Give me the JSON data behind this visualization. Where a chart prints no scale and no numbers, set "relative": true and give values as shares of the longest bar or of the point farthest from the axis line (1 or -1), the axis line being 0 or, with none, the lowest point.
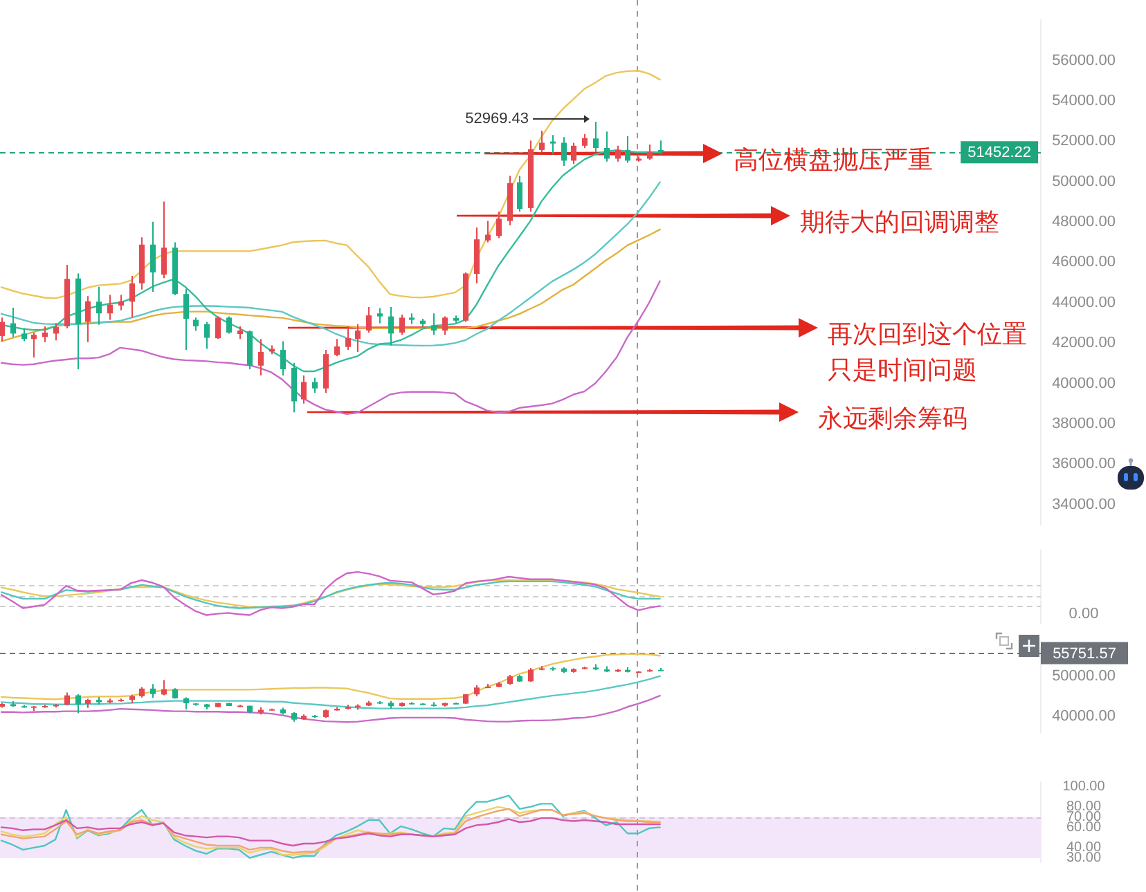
{
  "chart_data": [
    {
      "type": "candlestick",
      "categories": [
        null,
        null,
        null,
        null,
        null,
        null,
        null,
        null,
        null,
        null,
        null,
        null,
        null,
        null,
        null,
        null,
        null,
        null,
        null,
        null,
        null,
        null,
        null,
        null,
        null,
        null,
        null,
        null,
        null,
        null,
        null,
        null,
        null,
        null,
        null,
        null,
        null,
        null,
        null,
        null,
        null,
        null,
        null,
        null,
        null,
        null,
        null,
        null,
        null,
        null,
        null,
        null,
        null,
        null,
        null,
        null,
        null,
        null,
        null,
        null,
        null,
        null
      ],
      "ohlc": [
        [
          42350,
          43260,
          42090,
          43050
        ],
        [
          42980,
          43750,
          42300,
          42470
        ],
        [
          42470,
          42730,
          42090,
          42200
        ],
        [
          42200,
          42520,
          41280,
          42410
        ],
        [
          42300,
          42830,
          42050,
          42520
        ],
        [
          42470,
          42980,
          42130,
          42790
        ],
        [
          42830,
          45880,
          42730,
          45180
        ],
        [
          45200,
          45450,
          40700,
          42940
        ],
        [
          43050,
          44330,
          42050,
          44070
        ],
        [
          44050,
          44790,
          42900,
          43470
        ],
        [
          43470,
          44390,
          43150,
          43900
        ],
        [
          43860,
          44390,
          43620,
          44070
        ],
        [
          44050,
          45330,
          43260,
          44960
        ],
        [
          44960,
          47240,
          44650,
          46880
        ],
        [
          46880,
          48010,
          44540,
          45500
        ],
        [
          45390,
          49010,
          45220,
          46730
        ],
        [
          46730,
          46990,
          44370,
          44430
        ],
        [
          44430,
          44690,
          41660,
          43200
        ],
        [
          43150,
          43260,
          42600,
          42830
        ],
        [
          42940,
          43050,
          41710,
          42260
        ],
        [
          42240,
          43320,
          42200,
          43260
        ],
        [
          43260,
          43320,
          42470,
          42520
        ],
        [
          42450,
          42830,
          42200,
          42620
        ],
        [
          42580,
          42620,
          40700,
          40880
        ],
        [
          40880,
          42200,
          40390,
          41560
        ],
        [
          41580,
          41880,
          41450,
          41710
        ],
        [
          41660,
          42090,
          40390,
          40700
        ],
        [
          40770,
          41020,
          38570,
          39110
        ],
        [
          39210,
          40390,
          39000,
          40070
        ],
        [
          40070,
          40280,
          39530,
          39750
        ],
        [
          39750,
          41660,
          39530,
          41450
        ],
        [
          41410,
          42200,
          41340,
          41830
        ],
        [
          41810,
          42830,
          41660,
          42240
        ],
        [
          42200,
          42940,
          41560,
          42620
        ],
        [
          42620,
          43790,
          42520,
          43370
        ],
        [
          43470,
          43730,
          42980,
          43320
        ],
        [
          43320,
          43790,
          41880,
          42470
        ],
        [
          42520,
          43410,
          42410,
          43260
        ],
        [
          43260,
          43470,
          42940,
          43150
        ],
        [
          43110,
          43200,
          42830,
          42940
        ],
        [
          42880,
          43470,
          42410,
          42620
        ],
        [
          42620,
          43320,
          42410,
          43260
        ],
        [
          43240,
          43370,
          43010,
          43110
        ],
        [
          43110,
          45500,
          43050,
          45450
        ],
        [
          45430,
          47730,
          44960,
          47140
        ],
        [
          47090,
          48050,
          46990,
          47370
        ],
        [
          47310,
          48520,
          47200,
          48160
        ],
        [
          48050,
          50290,
          47840,
          49930
        ],
        [
          49970,
          50290,
          48520,
          48650
        ],
        [
          48690,
          52040,
          48520,
          51610
        ],
        [
          51570,
          52530,
          51460,
          51930
        ],
        [
          51990,
          52310,
          51350,
          51890
        ],
        [
          51930,
          52210,
          50780,
          51040
        ],
        [
          51040,
          51930,
          50870,
          51780
        ],
        [
          51780,
          52360,
          51670,
          52160
        ],
        [
          52140,
          52969.43,
          51460,
          51670
        ],
        [
          51670,
          52480,
          50990,
          51140
        ],
        [
          51140,
          51780,
          50990,
          51570
        ],
        [
          51570,
          52250,
          50930,
          51040
        ],
        [
          51040,
          51250,
          50990,
          51140
        ],
        [
          51140,
          51840,
          51080,
          51500
        ],
        [
          51570,
          52040,
          51350,
          51452.22
        ]
      ],
      "colors": [
        "#e5494f",
        "#1db088",
        "#1db088",
        "#e5494f",
        "#e5494f",
        "#e5494f",
        "#e5494f",
        "#1db088",
        "#e5494f",
        "#1db088",
        "#e5494f",
        "#e5494f",
        "#e5494f",
        "#e5494f",
        "#1db088",
        "#e5494f",
        "#1db088",
        "#1db088",
        "#1db088",
        "#1db088",
        "#e5494f",
        "#1db088",
        "#e5494f",
        "#1db088",
        "#e5494f",
        "#e5494f",
        "#1db088",
        "#1db088",
        "#e5494f",
        "#1db088",
        "#e5494f",
        "#e5494f",
        "#e5494f",
        "#e5494f",
        "#e5494f",
        "#1db088",
        "#1db088",
        "#e5494f",
        "#1db088",
        "#1db088",
        "#1db088",
        "#e5494f",
        "#1db088",
        "#e5494f",
        "#e5494f",
        "#e5494f",
        "#e5494f",
        "#e5494f",
        "#1db088",
        "#e5494f",
        "#e5494f",
        "#1db088",
        "#1db088",
        "#e5494f",
        "#e5494f",
        "#1db088",
        "#1db088",
        "#e5494f",
        "#1db088",
        "#e5494f",
        "#e5494f",
        "#1db088"
      ],
      "series": [
        {
          "type": "line",
          "color": "#ecc65a",
          "values": [
            44770,
            44600,
            44450,
            44350,
            44250,
            44220,
            44350,
            44550,
            44750,
            44860,
            44900,
            44940,
            45100,
            45600,
            46110,
            46400,
            46560,
            46560,
            46560,
            46560,
            46560,
            46560,
            46560,
            46560,
            46650,
            46750,
            46850,
            47000,
            47040,
            47070,
            47080,
            46950,
            46850,
            46300,
            45780,
            45050,
            44420,
            44330,
            44270,
            44260,
            44300,
            44400,
            44500,
            44860,
            46200,
            47250,
            48200,
            49400,
            50600,
            51300,
            52200,
            53000,
            53600,
            54100,
            54600,
            54900,
            55250,
            55400,
            55480,
            55500,
            55350,
            55060
          ]
        },
        {
          "type": "line",
          "color": "#36bc9c",
          "values": [
            42900,
            42800,
            42700,
            42650,
            42650,
            42830,
            43300,
            43500,
            43700,
            43850,
            43950,
            44000,
            44200,
            44500,
            44800,
            45000,
            45170,
            44800,
            44300,
            43700,
            43300,
            43000,
            42750,
            42450,
            42000,
            41600,
            41300,
            40900,
            40600,
            40600,
            40800,
            41020,
            41200,
            41350,
            41700,
            41950,
            42000,
            42150,
            42400,
            42700,
            42850,
            42900,
            42950,
            43160,
            43900,
            44860,
            45800,
            46560,
            47300,
            48050,
            49000,
            49700,
            50300,
            50710,
            51100,
            51350,
            51500,
            51560,
            51500,
            51460,
            51450,
            51460
          ]
        },
        {
          "type": "line",
          "color": "#5cc8c4",
          "values": [
            43450,
            43300,
            43150,
            43000,
            42950,
            42940,
            42940,
            42940,
            42960,
            43000,
            43050,
            43100,
            43250,
            43400,
            43580,
            43700,
            43790,
            43820,
            43840,
            43840,
            43830,
            43800,
            43780,
            43750,
            43680,
            43620,
            43550,
            43300,
            43100,
            42900,
            42700,
            42450,
            42250,
            42100,
            41980,
            41930,
            41920,
            41900,
            41880,
            41870,
            41880,
            41920,
            42000,
            42150,
            42450,
            42700,
            43100,
            43450,
            43850,
            44250,
            44650,
            45050,
            45350,
            45650,
            46000,
            46400,
            46900,
            47400,
            47900,
            48500,
            49200,
            49970
          ]
        },
        {
          "type": "line",
          "color": "#e3b23c",
          "values": [
            42090,
            42250,
            42400,
            42550,
            42700,
            42830,
            42900,
            42950,
            43000,
            43030,
            43050,
            43050,
            43050,
            43200,
            43350,
            43450,
            43500,
            43550,
            43560,
            43560,
            43500,
            43450,
            43420,
            43370,
            43330,
            43280,
            43250,
            43150,
            43050,
            42950,
            42900,
            42850,
            42830,
            42780,
            42730,
            42730,
            42730,
            42730,
            42730,
            42730,
            42730,
            42730,
            42730,
            42730,
            42800,
            42950,
            43100,
            43250,
            43450,
            43700,
            43950,
            44300,
            44650,
            44900,
            45300,
            45700,
            46100,
            46450,
            46850,
            47100,
            47350,
            47630
          ]
        },
        {
          "type": "line",
          "color": "#c96ac8",
          "values": [
            41020,
            40950,
            40920,
            40950,
            41050,
            41130,
            41180,
            41240,
            41240,
            41280,
            41450,
            41770,
            41700,
            41620,
            41450,
            41300,
            41200,
            41150,
            41130,
            41100,
            41050,
            41020,
            40950,
            40900,
            40750,
            40550,
            40200,
            39700,
            39250,
            38950,
            38700,
            38600,
            38480,
            38550,
            38850,
            39150,
            39450,
            39550,
            39580,
            39580,
            39580,
            39550,
            39500,
            39100,
            38900,
            38650,
            38570,
            38600,
            38790,
            38850,
            38920,
            39000,
            39200,
            39450,
            39600,
            40000,
            40600,
            41300,
            42300,
            43100,
            44000,
            45070
          ]
        }
      ],
      "ylim": [
        33000,
        58000
      ],
      "yticks": [
        {
          "value": 34000,
          "label": "34000.00"
        },
        {
          "value": 36000,
          "label": "36000.00"
        },
        {
          "value": 38000,
          "label": "38000.00"
        },
        {
          "value": 40000,
          "label": "40000.00"
        },
        {
          "value": 42000,
          "label": "42000.00"
        },
        {
          "value": 44000,
          "label": "44000.00"
        },
        {
          "value": 46000,
          "label": "46000.00"
        },
        {
          "value": 48000,
          "label": "48000.00"
        },
        {
          "value": 50000,
          "label": "50000.00"
        },
        {
          "value": 52000,
          "label": "52000.00"
        },
        {
          "value": 54000,
          "label": "54000.00"
        },
        {
          "value": 56000,
          "label": "56000.00"
        }
      ],
      "ref_lines": [
        {
          "axis": "y",
          "value": 51452.22,
          "label": "51452.22",
          "color": "#1fa57c",
          "line_style": "dashed"
        }
      ],
      "annotations": [
        "52969.43",
        "高位横盘抛压严重",
        "期待大的回调调整",
        "再次回到这个位置",
        "只是时间问题",
        "永远剩余筹码"
      ]
    },
    {
      "type": "line",
      "relative": true,
      "categories": [
        null,
        null,
        null,
        null,
        null,
        null,
        null,
        null,
        null,
        null,
        null,
        null,
        null,
        null,
        null,
        null,
        null,
        null,
        null,
        null,
        null,
        null,
        null,
        null,
        null,
        null,
        null,
        null,
        null,
        null,
        null,
        null,
        null,
        null,
        null,
        null,
        null,
        null,
        null,
        null,
        null,
        null,
        null,
        null,
        null,
        null,
        null,
        null,
        null,
        null,
        null,
        null,
        null,
        null,
        null,
        null,
        null,
        null,
        null,
        null,
        null,
        null
      ],
      "series": [
        {
          "color": "#d064c8",
          "values": [
            0.47,
            0.32,
            0.16,
            0.2,
            0.24,
            0.45,
            0.68,
            0.57,
            0.56,
            0.57,
            0.58,
            0.59,
            0.74,
            0.81,
            0.75,
            0.66,
            0.41,
            0.24,
            0.09,
            0,
            0.03,
            0.05,
            0.02,
            0,
            0.12,
            0.18,
            0.16,
            0.19,
            0.25,
            0.25,
            0.6,
            0.82,
            0.97,
            1,
            0.96,
            0.9,
            0.8,
            0.78,
            0.76,
            0.62,
            0.48,
            0.51,
            0.56,
            0.74,
            0.78,
            0.8,
            0.84,
            0.89,
            0.86,
            0.83,
            0.83,
            0.83,
            0.8,
            0.77,
            0.74,
            0.71,
            0.62,
            0.42,
            0.22,
            0.11,
            0.17,
            0.21
          ]
        },
        {
          "color": "#52c6be",
          "values": [
            0.53,
            0.45,
            0.38,
            0.38,
            0.38,
            0.48,
            0.58,
            0.56,
            0.54,
            0.56,
            0.58,
            0.59,
            0.65,
            0.7,
            0.67,
            0.64,
            0.54,
            0.43,
            0.35,
            0.28,
            0.22,
            0.18,
            0.16,
            0.17,
            0.18,
            0.19,
            0.2,
            0.22,
            0.26,
            0.32,
            0.42,
            0.53,
            0.6,
            0.66,
            0.7,
            0.73,
            0.75,
            0.73,
            0.7,
            0.64,
            0.6,
            0.59,
            0.59,
            0.64,
            0.7,
            0.73,
            0.77,
            0.78,
            0.78,
            0.78,
            0.78,
            0.78,
            0.76,
            0.73,
            0.7,
            0.66,
            0.58,
            0.5,
            0.42,
            0.38,
            0.38,
            0.38
          ]
        },
        {
          "color": "#e9c85c",
          "values": [
            0.64,
            0.59,
            0.53,
            0.48,
            0.44,
            0.44,
            0.46,
            0.48,
            0.5,
            0.53,
            0.57,
            0.61,
            0.64,
            0.65,
            0.65,
            0.65,
            0.56,
            0.47,
            0.4,
            0.34,
            0.29,
            0.26,
            0.22,
            0.19,
            0.19,
            0.2,
            0.21,
            0.22,
            0.28,
            0.35,
            0.42,
            0.51,
            0.59,
            0.64,
            0.68,
            0.72,
            0.71,
            0.69,
            0.67,
            0.65,
            0.65,
            0.65,
            0.67,
            0.72,
            0.77,
            0.81,
            0.81,
            0.81,
            0.81,
            0.81,
            0.81,
            0.81,
            0.8,
            0.78,
            0.76,
            0.72,
            0.67,
            0.6,
            0.56,
            0.52,
            0.47,
            0.43
          ]
        }
      ],
      "ref_lines": [
        {
          "axis": "y",
          "value": 0.7,
          "color": "#cfcfcf",
          "line_style": "dashed"
        },
        {
          "axis": "y",
          "value": 0.43,
          "color": "#cfcfcf",
          "line_style": "dashed"
        },
        {
          "axis": "y",
          "value": 0.22,
          "color": "#cfcfcf",
          "line_style": "dashed"
        }
      ],
      "annotations": [
        "0.00"
      ]
    },
    {
      "type": "candlestick",
      "categories": [
        null,
        null,
        null,
        null,
        null,
        null,
        null,
        null,
        null,
        null,
        null,
        null,
        null,
        null,
        null,
        null,
        null,
        null,
        null,
        null,
        null,
        null,
        null,
        null,
        null,
        null,
        null,
        null,
        null,
        null,
        null,
        null,
        null,
        null,
        null,
        null,
        null,
        null,
        null,
        null,
        null,
        null,
        null,
        null,
        null,
        null,
        null,
        null,
        null,
        null,
        null,
        null,
        null,
        null,
        null,
        null,
        null,
        null,
        null,
        null,
        null,
        null
      ],
      "ohlc": [
        [
          42350,
          43260,
          42090,
          43050
        ],
        [
          42980,
          43750,
          42300,
          42470
        ],
        [
          42470,
          42730,
          42090,
          42200
        ],
        [
          42200,
          42520,
          41280,
          42410
        ],
        [
          42300,
          42830,
          42050,
          42520
        ],
        [
          42470,
          42980,
          42130,
          42790
        ],
        [
          42830,
          45880,
          42730,
          45180
        ],
        [
          45200,
          45450,
          40700,
          42940
        ],
        [
          43050,
          44330,
          42050,
          44070
        ],
        [
          44050,
          44790,
          42900,
          43470
        ],
        [
          43470,
          44390,
          43150,
          43900
        ],
        [
          43860,
          44390,
          43620,
          44070
        ],
        [
          44050,
          45330,
          43260,
          44960
        ],
        [
          44960,
          47240,
          44650,
          46880
        ],
        [
          46880,
          48010,
          44540,
          45500
        ],
        [
          45390,
          49010,
          45220,
          46730
        ],
        [
          46730,
          46990,
          44370,
          44430
        ],
        [
          44430,
          44690,
          41660,
          43200
        ],
        [
          43150,
          43260,
          42600,
          42830
        ],
        [
          42940,
          43050,
          41710,
          42260
        ],
        [
          42240,
          43320,
          42200,
          43260
        ],
        [
          43260,
          43320,
          42470,
          42520
        ],
        [
          42450,
          42830,
          42200,
          42620
        ],
        [
          42580,
          42620,
          40700,
          40880
        ],
        [
          40880,
          42200,
          40390,
          41560
        ],
        [
          41580,
          41880,
          41450,
          41710
        ],
        [
          41660,
          42090,
          40390,
          40700
        ],
        [
          40770,
          41020,
          38570,
          39110
        ],
        [
          39210,
          40390,
          39000,
          40070
        ],
        [
          40070,
          40280,
          39530,
          39750
        ],
        [
          39750,
          41660,
          39530,
          41450
        ],
        [
          41410,
          42200,
          41340,
          41830
        ],
        [
          41810,
          42830,
          41660,
          42240
        ],
        [
          42200,
          42940,
          41560,
          42620
        ],
        [
          42620,
          43790,
          42520,
          43370
        ],
        [
          43470,
          43730,
          42980,
          43320
        ],
        [
          43320,
          43790,
          41880,
          42470
        ],
        [
          42520,
          43410,
          42410,
          43260
        ],
        [
          43260,
          43470,
          42940,
          43150
        ],
        [
          43110,
          43200,
          42830,
          42940
        ],
        [
          42880,
          43470,
          42410,
          42620
        ],
        [
          42620,
          43320,
          42410,
          43260
        ],
        [
          43240,
          43370,
          43010,
          43110
        ],
        [
          43110,
          45500,
          43050,
          45450
        ],
        [
          45430,
          47730,
          44960,
          47140
        ],
        [
          47090,
          48050,
          46990,
          47370
        ],
        [
          47310,
          48520,
          47200,
          48160
        ],
        [
          48050,
          50290,
          47840,
          49930
        ],
        [
          49970,
          50290,
          48520,
          48650
        ],
        [
          48690,
          52040,
          48520,
          51610
        ],
        [
          51570,
          52530,
          51460,
          51930
        ],
        [
          51990,
          52310,
          51350,
          51890
        ],
        [
          51930,
          52210,
          50780,
          51040
        ],
        [
          51040,
          51930,
          50870,
          51780
        ],
        [
          51780,
          52360,
          51670,
          52160
        ],
        [
          52140,
          52969.43,
          51460,
          51670
        ],
        [
          51670,
          52480,
          50990,
          51140
        ],
        [
          51140,
          51780,
          50990,
          51570
        ],
        [
          51570,
          52250,
          50930,
          51040
        ],
        [
          51040,
          51250,
          50990,
          51140
        ],
        [
          51140,
          51840,
          51080,
          51500
        ],
        [
          51570,
          52040,
          51350,
          51452.22
        ]
      ],
      "colors": [
        "#e5494f",
        "#1db088",
        "#1db088",
        "#e5494f",
        "#e5494f",
        "#e5494f",
        "#e5494f",
        "#1db088",
        "#e5494f",
        "#1db088",
        "#e5494f",
        "#e5494f",
        "#e5494f",
        "#e5494f",
        "#1db088",
        "#e5494f",
        "#1db088",
        "#1db088",
        "#1db088",
        "#1db088",
        "#e5494f",
        "#1db088",
        "#e5494f",
        "#1db088",
        "#e5494f",
        "#e5494f",
        "#1db088",
        "#1db088",
        "#e5494f",
        "#1db088",
        "#e5494f",
        "#e5494f",
        "#e5494f",
        "#e5494f",
        "#e5494f",
        "#1db088",
        "#1db088",
        "#e5494f",
        "#1db088",
        "#1db088",
        "#1db088",
        "#e5494f",
        "#1db088",
        "#e5494f",
        "#e5494f",
        "#e5494f",
        "#e5494f",
        "#e5494f",
        "#1db088",
        "#e5494f",
        "#e5494f",
        "#1db088",
        "#1db088",
        "#e5494f",
        "#e5494f",
        "#1db088",
        "#1db088",
        "#e5494f",
        "#1db088",
        "#e5494f",
        "#e5494f",
        "#1db088"
      ],
      "series": [
        {
          "type": "line",
          "color": "#ecc65a",
          "values": [
            44800,
            44600,
            44500,
            44400,
            44300,
            44200,
            44400,
            44600,
            44800,
            44900,
            44900,
            44900,
            45100,
            45600,
            46100,
            46400,
            46600,
            46600,
            46600,
            46600,
            46600,
            46600,
            46600,
            46600,
            46700,
            46800,
            46900,
            47000,
            47000,
            47100,
            47100,
            47000,
            46900,
            46300,
            45800,
            45100,
            44400,
            44300,
            44300,
            44300,
            44300,
            44400,
            44500,
            44900,
            46200,
            47300,
            48200,
            49400,
            50600,
            51300,
            52200,
            53000,
            53600,
            54100,
            54600,
            54900,
            55300,
            55400,
            55500,
            55500,
            55400,
            55100
          ]
        },
        {
          "type": "line",
          "color": "#5cc8c4",
          "values": [
            43500,
            43300,
            43200,
            43000,
            43000,
            42900,
            42900,
            42900,
            43000,
            43000,
            43100,
            43100,
            43300,
            43400,
            43600,
            43700,
            43800,
            43800,
            43800,
            43800,
            43800,
            43800,
            43800,
            43800,
            43700,
            43600,
            43600,
            43300,
            43100,
            42900,
            42700,
            42500,
            42300,
            42100,
            42000,
            41900,
            41900,
            41900,
            41900,
            41900,
            41900,
            41900,
            42000,
            42200,
            42500,
            42700,
            43100,
            43500,
            43900,
            44300,
            44700,
            45100,
            45400,
            45700,
            46000,
            46400,
            46900,
            47400,
            47900,
            48500,
            49200,
            50000
          ]
        },
        {
          "type": "line",
          "color": "#c96ac8",
          "values": [
            41000,
            41000,
            40900,
            41000,
            41100,
            41100,
            41200,
            41200,
            41200,
            41300,
            41500,
            41800,
            41700,
            41600,
            41500,
            41300,
            41200,
            41200,
            41100,
            41100,
            41100,
            41000,
            41000,
            40900,
            40800,
            40600,
            40200,
            39700,
            39300,
            39000,
            38700,
            38600,
            38500,
            38600,
            38900,
            39200,
            39500,
            39600,
            39600,
            39600,
            39600,
            39600,
            39500,
            39100,
            38900,
            38700,
            38600,
            38600,
            38800,
            38900,
            38900,
            39000,
            39200,
            39500,
            39600,
            40000,
            40600,
            41300,
            42300,
            43100,
            44000,
            45100
          ]
        }
      ],
      "ylim": [
        36000,
        57000
      ],
      "yticks": [
        {
          "value": 40000,
          "label": "40000.00"
        },
        {
          "value": 50000,
          "label": "50000.00"
        }
      ],
      "ref_lines": [
        {
          "axis": "y",
          "value": 55751.57,
          "label": "55751.57",
          "color": "#6e737a",
          "line_style": "dashed"
        }
      ]
    },
    {
      "type": "line",
      "categories": [
        null,
        null,
        null,
        null,
        null,
        null,
        null,
        null,
        null,
        null,
        null,
        null,
        null,
        null,
        null,
        null,
        null,
        null,
        null,
        null,
        null,
        null,
        null,
        null,
        null,
        null,
        null,
        null,
        null,
        null,
        null,
        null,
        null,
        null,
        null,
        null,
        null,
        null,
        null,
        null,
        null,
        null,
        null,
        null,
        null,
        null,
        null,
        null,
        null,
        null,
        null,
        null,
        null,
        null,
        null,
        null,
        null,
        null,
        null,
        null,
        null,
        null
      ],
      "series": [
        {
          "color": "#d457a8",
          "values": [
            60,
            59,
            57,
            58,
            58,
            62,
            67,
            59,
            60,
            58,
            59,
            59,
            63,
            65,
            62,
            64,
            55,
            52,
            51,
            50,
            51,
            51,
            50,
            47,
            47,
            47,
            44,
            42,
            44,
            44,
            46,
            49,
            50,
            52,
            54,
            52,
            51,
            53,
            53,
            52,
            51,
            52,
            53,
            59,
            62,
            63,
            65,
            68,
            65,
            66,
            69,
            69,
            67,
            66,
            67,
            66,
            65,
            63,
            63,
            63,
            63,
            63
          ]
        },
        {
          "color": "#f2a46e",
          "values": [
            53,
            51,
            49,
            50,
            51,
            58,
            66,
            53,
            57,
            54,
            56,
            57,
            65,
            67,
            63,
            64,
            52,
            49,
            46,
            43,
            42,
            42,
            42,
            38,
            40,
            40,
            37,
            35,
            36,
            36,
            43,
            49,
            51,
            53,
            55,
            54,
            53,
            54,
            53,
            52,
            51,
            53,
            54,
            66,
            70,
            73,
            76,
            78,
            71,
            74,
            77,
            77,
            72,
            73,
            74,
            71,
            69,
            67,
            66,
            66,
            65,
            65
          ]
        },
        {
          "color": "#e8d46a",
          "values": [
            56,
            53,
            51,
            52,
            54,
            63,
            70,
            50,
            58,
            53,
            55,
            57,
            66,
            71,
            67,
            65,
            50,
            45,
            41,
            39,
            40,
            40,
            40,
            35,
            38,
            39,
            33,
            33,
            34,
            35,
            41,
            49,
            53,
            57,
            55,
            53,
            54,
            55,
            53,
            52,
            51,
            54,
            55,
            71,
            74,
            77,
            80,
            78,
            74,
            76,
            77,
            77,
            72,
            74,
            75,
            71,
            69,
            68,
            67,
            66,
            66,
            65
          ]
        },
        {
          "color": "#4cc7c0",
          "values": [
            47,
            43,
            38,
            40,
            42,
            48,
            77,
            49,
            57,
            52,
            54,
            58,
            69,
            77,
            62,
            65,
            48,
            42,
            37,
            34,
            39,
            39,
            38,
            30,
            33,
            36,
            33,
            30,
            32,
            32,
            44,
            52,
            56,
            61,
            67,
            67,
            54,
            61,
            58,
            54,
            51,
            59,
            58,
            74,
            85,
            85,
            88,
            91,
            78,
            80,
            83,
            83,
            71,
            74,
            76,
            69,
            62,
            65,
            54,
            54,
            59,
            60
          ]
        }
      ],
      "ylim": [
        26,
        104
      ],
      "yticks": [
        {
          "value": 30,
          "label": "30.00"
        },
        {
          "value": 40,
          "label": "40.00"
        },
        {
          "value": 60,
          "label": "60.00"
        },
        {
          "value": 70,
          "label": "70.00"
        },
        {
          "value": 80,
          "label": "80.00"
        },
        {
          "value": 100,
          "label": "100.00"
        }
      ],
      "bands": [
        {
          "axis": "y",
          "from": 30,
          "to": 70,
          "color": "#f3e6fa"
        }
      ],
      "ref_lines": [
        {
          "axis": "y",
          "value": 70,
          "color": "#d6c4e0",
          "line_style": "dashed"
        }
      ]
    }
  ]
}
